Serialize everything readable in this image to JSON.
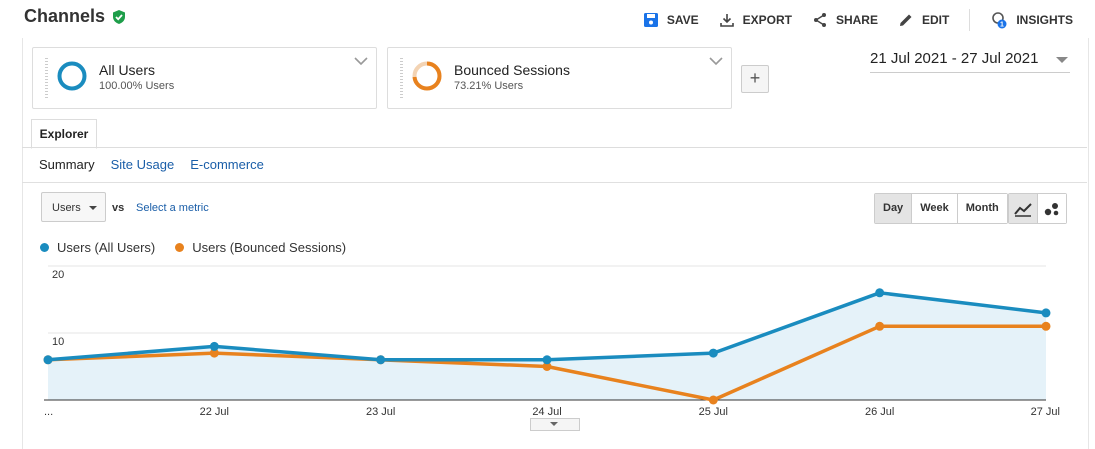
{
  "header": {
    "title": "Channels",
    "actions": [
      {
        "label": "SAVE",
        "icon": "save-icon"
      },
      {
        "label": "EXPORT",
        "icon": "export-icon"
      },
      {
        "label": "SHARE",
        "icon": "share-icon"
      },
      {
        "label": "EDIT",
        "icon": "pencil-icon"
      },
      {
        "label": "INSIGHTS",
        "icon": "insights-icon",
        "badge": "1"
      }
    ]
  },
  "segments": [
    {
      "name": "All Users",
      "sub": "100.00% Users",
      "color": "#1a8cbf"
    },
    {
      "name": "Bounced Sessions",
      "sub": "73.21% Users",
      "color": "#e8821e"
    }
  ],
  "add_segment": "+",
  "date_range": "21 Jul 2021 - 27 Jul 2021",
  "tab": "Explorer",
  "subtabs": [
    "Summary",
    "Site Usage",
    "E-commerce"
  ],
  "metric": {
    "selected": "Users",
    "vs": "vs",
    "select_link": "Select a metric"
  },
  "granularity": [
    "Day",
    "Week",
    "Month"
  ],
  "granularity_active": "Day",
  "chart_data": {
    "type": "line",
    "categories": [
      "...",
      "22 Jul",
      "23 Jul",
      "24 Jul",
      "25 Jul",
      "26 Jul",
      "27 Jul"
    ],
    "y_ticks": [
      20,
      10
    ],
    "ylim": [
      0,
      20
    ],
    "series": [
      {
        "name": "Users (All Users)",
        "color": "#1a8cbf",
        "values": [
          6,
          8,
          6,
          6,
          7,
          16,
          13
        ]
      },
      {
        "name": "Users (Bounced Sessions)",
        "color": "#e8821e",
        "values": [
          6,
          7,
          6,
          5,
          0,
          11,
          11
        ]
      }
    ],
    "grid": true
  }
}
